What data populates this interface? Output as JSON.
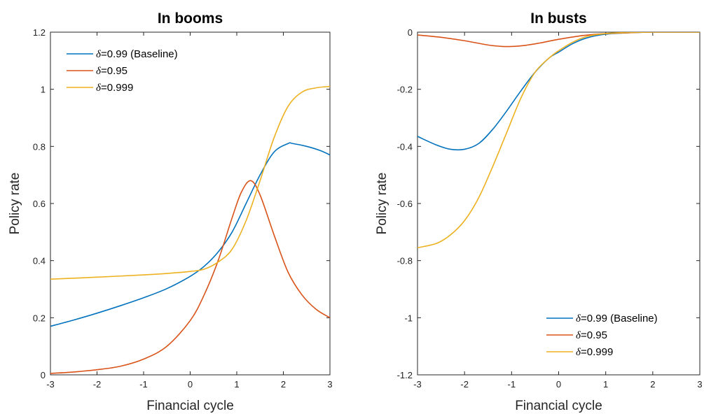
{
  "chart_data": [
    {
      "type": "line",
      "title": "In booms",
      "xlabel": "Financial cycle",
      "ylabel": "Policy rate",
      "xlim": [
        -3,
        3
      ],
      "ylim": [
        0,
        1.2
      ],
      "xticks": [
        -3,
        -2,
        -1,
        0,
        1,
        2,
        3
      ],
      "xtick_labels": [
        "-3",
        "-2",
        "-1",
        "0",
        "1",
        "2",
        "3"
      ],
      "yticks": [
        0,
        0.2,
        0.4,
        0.6,
        0.8,
        1,
        1.2
      ],
      "ytick_labels": [
        "0",
        "0.2",
        "0.4",
        "0.6",
        "0.8",
        "1",
        "1.2"
      ],
      "legend_position": "top-left",
      "grid": false,
      "series": [
        {
          "name": "=0.99 (Baseline)",
          "symbol": "δ",
          "color": "#0072BD",
          "x": [
            -3,
            -2.5,
            -2,
            -1.5,
            -1,
            -0.5,
            0,
            0.3,
            0.6,
            0.9,
            1.2,
            1.5,
            1.8,
            2.1,
            2.2,
            2.5,
            2.8,
            3
          ],
          "y": [
            0.17,
            0.192,
            0.216,
            0.242,
            0.27,
            0.302,
            0.345,
            0.38,
            0.43,
            0.5,
            0.6,
            0.7,
            0.78,
            0.81,
            0.81,
            0.8,
            0.785,
            0.77
          ]
        },
        {
          "name": "=0.95",
          "symbol": "δ",
          "color": "#D95319",
          "x": [
            -3,
            -2.5,
            -2,
            -1.5,
            -1,
            -0.5,
            0,
            0.3,
            0.6,
            0.9,
            1.1,
            1.3,
            1.5,
            1.8,
            2.1,
            2.4,
            2.7,
            3
          ],
          "y": [
            0.005,
            0.01,
            0.018,
            0.03,
            0.055,
            0.1,
            0.19,
            0.28,
            0.4,
            0.55,
            0.64,
            0.68,
            0.63,
            0.49,
            0.36,
            0.28,
            0.23,
            0.2
          ]
        },
        {
          "name": "=0.999",
          "symbol": "δ",
          "color": "#EDB120",
          "x": [
            -3,
            -2,
            -1,
            -0.5,
            0,
            0.3,
            0.6,
            0.9,
            1.2,
            1.5,
            1.8,
            2.1,
            2.4,
            2.7,
            3
          ],
          "y": [
            0.335,
            0.342,
            0.35,
            0.355,
            0.362,
            0.37,
            0.395,
            0.44,
            0.54,
            0.68,
            0.83,
            0.94,
            0.99,
            1.005,
            1.01
          ]
        }
      ]
    },
    {
      "type": "line",
      "title": "In busts",
      "xlabel": "Financial cycle",
      "ylabel": "Policy rate",
      "xlim": [
        -3,
        3
      ],
      "ylim": [
        -1.2,
        0
      ],
      "xticks": [
        -3,
        -2,
        -1,
        0,
        1,
        2,
        3
      ],
      "xtick_labels": [
        "-3",
        "-2",
        "-1",
        "0",
        "1",
        "2",
        "3"
      ],
      "yticks": [
        -1.2,
        -1,
        -0.8,
        -0.6,
        -0.4,
        -0.2,
        0
      ],
      "ytick_labels": [
        "-1.2",
        "-1",
        "-0.8",
        "-0.6",
        "-0.4",
        "-0.2",
        "0"
      ],
      "legend_position": "bottom-right",
      "grid": false,
      "series": [
        {
          "name": "=0.99 (Baseline)",
          "symbol": "δ",
          "color": "#0072BD",
          "x": [
            -3,
            -2.6,
            -2.3,
            -2,
            -1.7,
            -1.4,
            -1.1,
            -0.8,
            -0.5,
            -0.2,
            0,
            0.3,
            0.6,
            1,
            1.5,
            2,
            2.5,
            3
          ],
          "y": [
            -0.365,
            -0.395,
            -0.41,
            -0.41,
            -0.39,
            -0.34,
            -0.275,
            -0.205,
            -0.14,
            -0.09,
            -0.07,
            -0.04,
            -0.02,
            -0.007,
            -0.002,
            0,
            0,
            0
          ]
        },
        {
          "name": "=0.95",
          "symbol": "δ",
          "color": "#D95319",
          "x": [
            -3,
            -2.5,
            -2,
            -1.5,
            -1.2,
            -1,
            -0.7,
            -0.4,
            0,
            0.5,
            1,
            1.5,
            2,
            2.5,
            3
          ],
          "y": [
            -0.01,
            -0.018,
            -0.03,
            -0.045,
            -0.05,
            -0.05,
            -0.046,
            -0.038,
            -0.025,
            -0.012,
            -0.005,
            -0.002,
            0,
            0,
            0
          ]
        },
        {
          "name": "=0.999",
          "symbol": "δ",
          "color": "#EDB120",
          "x": [
            -3,
            -2.6,
            -2.3,
            -2,
            -1.7,
            -1.4,
            -1.1,
            -0.8,
            -0.5,
            -0.2,
            0,
            0.3,
            0.6,
            1,
            1.5,
            2,
            2.5,
            3
          ],
          "y": [
            -0.755,
            -0.74,
            -0.71,
            -0.66,
            -0.58,
            -0.47,
            -0.35,
            -0.23,
            -0.14,
            -0.09,
            -0.065,
            -0.035,
            -0.015,
            -0.005,
            -0.001,
            0,
            0,
            0
          ]
        }
      ]
    }
  ]
}
